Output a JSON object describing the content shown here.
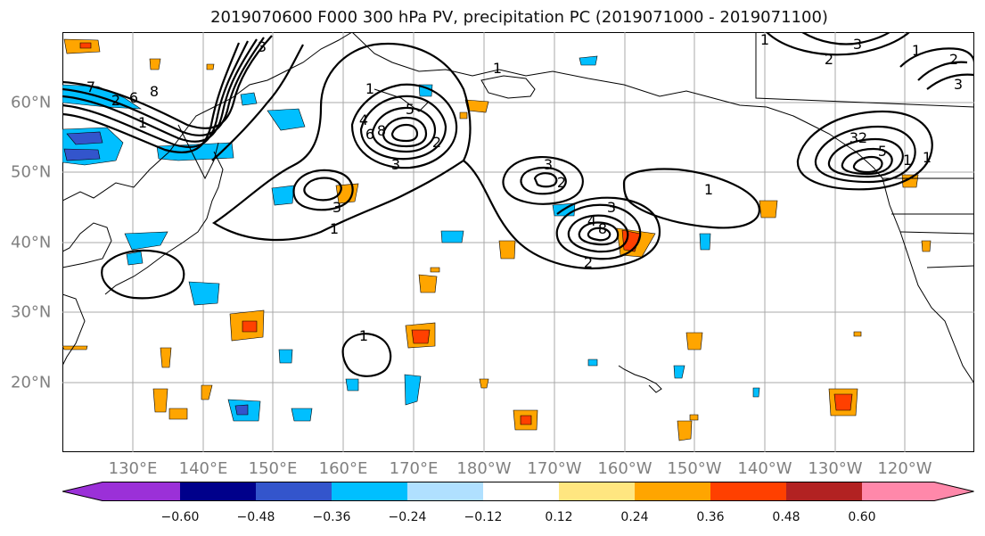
{
  "title": "2019070600 F000 300 hPa PV, precipitation PC (2019071000 - 2019071100)",
  "lat_labels": [
    "60°N",
    "50°N",
    "40°N",
    "30°N",
    "20°N"
  ],
  "lon_labels": [
    "130°E",
    "140°E",
    "150°E",
    "160°E",
    "170°E",
    "180°W",
    "170°W",
    "160°W",
    "150°W",
    "140°W",
    "130°W",
    "120°W"
  ],
  "map": {
    "lat_range": [
      10,
      70
    ],
    "lon_range": [
      120,
      250
    ],
    "grid": true
  },
  "contour_labels": [
    "1",
    "2",
    "3",
    "6",
    "7",
    "8",
    "1",
    "1",
    "2",
    "3",
    "4",
    "5",
    "6",
    "8",
    "1",
    "3",
    "1",
    "3",
    "1",
    "2",
    "3",
    "4",
    "8",
    "2",
    "1",
    "1",
    "2",
    "3",
    "5",
    "1",
    "2",
    "3",
    "1",
    "3",
    "2"
  ],
  "colorbar": {
    "colors": [
      "#9b30d8",
      "#00008b",
      "#3355cc",
      "#00bfff",
      "#b0e0ff",
      "#ffffff",
      "#ffe680",
      "#ffa500",
      "#ff4000",
      "#b22222",
      "#ff88aa"
    ],
    "tick_labels": [
      "−0.60",
      "−0.48",
      "−0.36",
      "−0.24",
      "−0.12",
      "0.12",
      "0.24",
      "0.36",
      "0.48",
      "0.60"
    ]
  }
}
